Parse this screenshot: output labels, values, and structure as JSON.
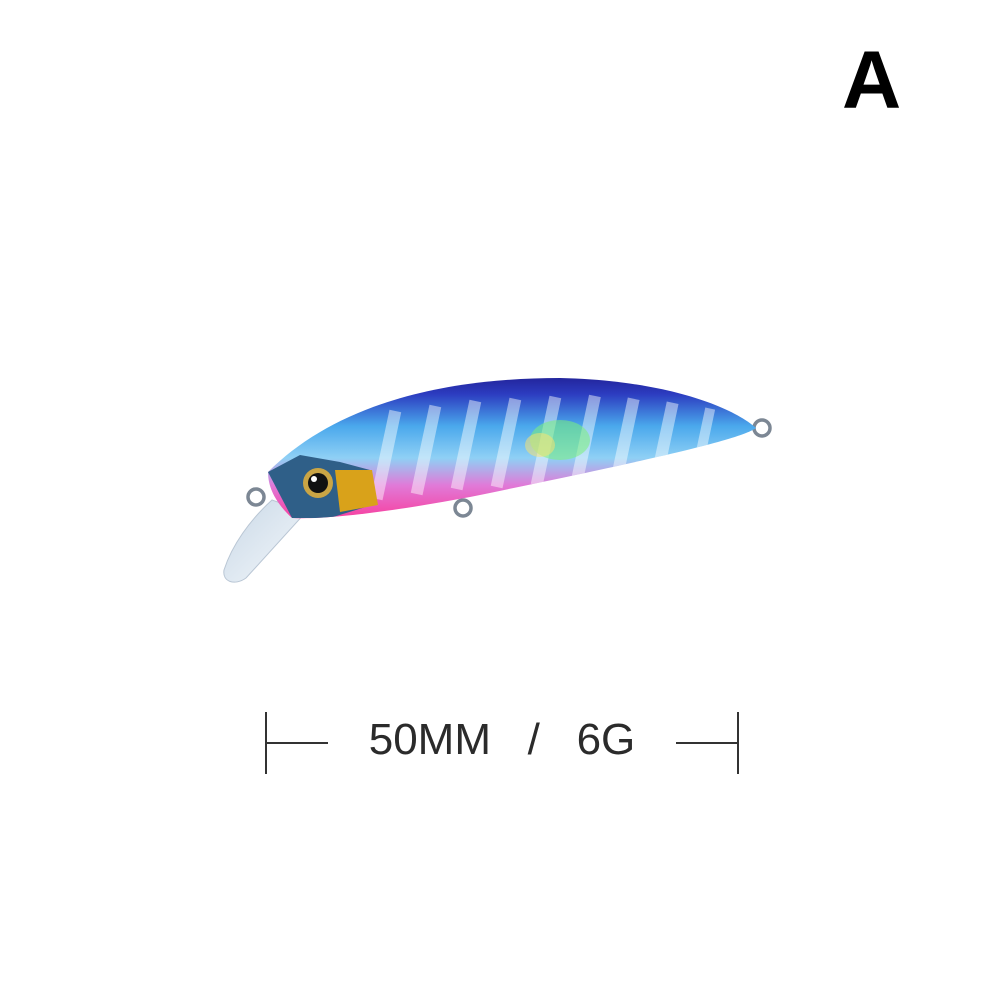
{
  "variant_label": "A",
  "dimension": {
    "length": "50MM",
    "separator": "/",
    "weight": "6G"
  },
  "product": {
    "type": "minnow fishing lure",
    "colors": {
      "back": "#2a2fb0",
      "side": "#4fb4f0",
      "belly": "#ff3f9a",
      "head_gold": "#d9a21a",
      "lip": "#dfe9f3"
    }
  }
}
